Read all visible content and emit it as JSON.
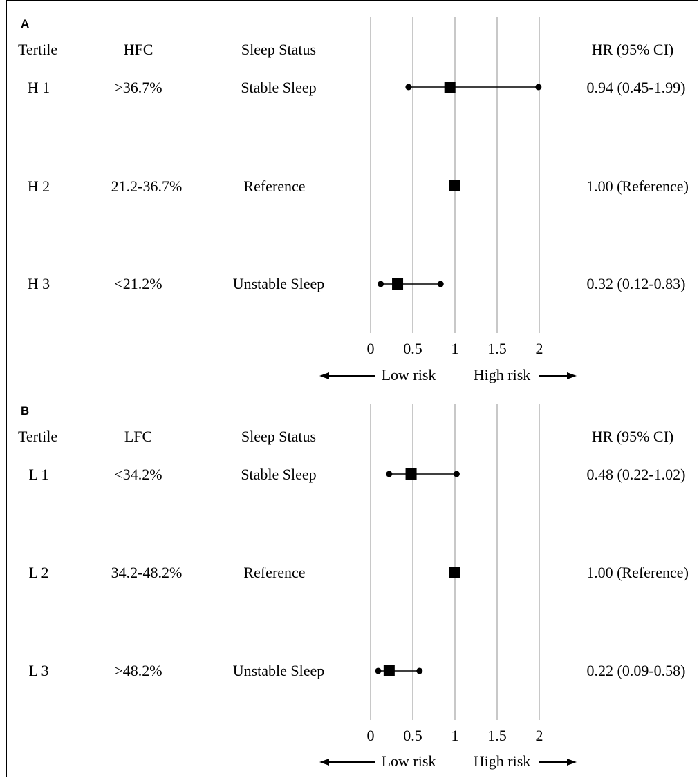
{
  "panels": [
    {
      "label": "A",
      "headers": {
        "tertile": "Tertile",
        "fraction": "HFC",
        "status": "Sleep Status",
        "hr": "HR (95% CI)"
      },
      "rows": [
        {
          "tertile": "H 1",
          "fraction": ">36.7%",
          "status": "Stable Sleep",
          "hr_text": "0.94 (0.45-1.99)"
        },
        {
          "tertile": "H 2",
          "fraction": "21.2-36.7%",
          "status": "Reference",
          "hr_text": "1.00 (Reference)"
        },
        {
          "tertile": "H 3",
          "fraction": "<21.2%",
          "status": "Unstable Sleep",
          "hr_text": "0.32 (0.12-0.83)"
        }
      ],
      "ticks": [
        "0",
        "0.5",
        "1",
        "1.5",
        "2"
      ],
      "low_risk": "Low risk",
      "high_risk": "High risk"
    },
    {
      "label": "B",
      "headers": {
        "tertile": "Tertile",
        "fraction": "LFC",
        "status": "Sleep Status",
        "hr": "HR (95% CI)"
      },
      "rows": [
        {
          "tertile": "L 1",
          "fraction": "<34.2%",
          "status": "Stable Sleep",
          "hr_text": "0.48 (0.22-1.02)"
        },
        {
          "tertile": "L 2",
          "fraction": "34.2-48.2%",
          "status": "Reference",
          "hr_text": "1.00 (Reference)"
        },
        {
          "tertile": "L 3",
          "fraction": ">48.2%",
          "status": "Unstable Sleep",
          "hr_text": "0.22 (0.09-0.58)"
        }
      ],
      "ticks": [
        "0",
        "0.5",
        "1",
        "1.5",
        "2"
      ],
      "low_risk": "Low risk",
      "high_risk": "High risk"
    }
  ],
  "chart_data": [
    {
      "type": "scatter",
      "subtype": "forest",
      "xlim": [
        0,
        2
      ],
      "xticks": [
        0,
        0.5,
        1,
        1.5,
        2
      ],
      "grid": true,
      "series": [
        {
          "label": "H 1",
          "hr": 0.94,
          "lower": 0.45,
          "upper": 1.99
        },
        {
          "label": "H 2",
          "hr": 1.0,
          "lower": null,
          "upper": null
        },
        {
          "label": "H 3",
          "hr": 0.32,
          "lower": 0.12,
          "upper": 0.83
        }
      ]
    },
    {
      "type": "scatter",
      "subtype": "forest",
      "xlim": [
        0,
        2
      ],
      "xticks": [
        0,
        0.5,
        1,
        1.5,
        2
      ],
      "grid": true,
      "series": [
        {
          "label": "L 1",
          "hr": 0.48,
          "lower": 0.22,
          "upper": 1.02
        },
        {
          "label": "L 2",
          "hr": 1.0,
          "lower": null,
          "upper": null
        },
        {
          "label": "L 3",
          "hr": 0.22,
          "lower": 0.09,
          "upper": 0.58
        }
      ]
    }
  ]
}
